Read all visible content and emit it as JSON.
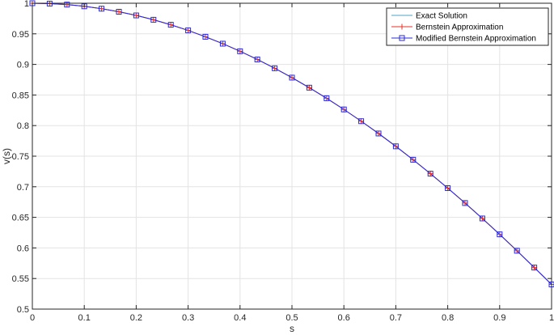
{
  "chart_data": {
    "type": "line",
    "xlabel": "s",
    "ylabel": "v(s)",
    "xlim": [
      0,
      1
    ],
    "ylim": [
      0.5,
      1
    ],
    "grid": true,
    "legend_position": "top-right",
    "x_ticks": [
      "0",
      "0.1",
      "0.2",
      "0.3",
      "0.4",
      "0.5",
      "0.6",
      "0.7",
      "0.8",
      "0.9",
      "1"
    ],
    "y_ticks": [
      "0.5",
      "0.55",
      "0.6",
      "0.65",
      "0.7",
      "0.75",
      "0.8",
      "0.85",
      "0.9",
      "0.95",
      "1"
    ],
    "x": [
      0,
      0.0333,
      0.0667,
      0.1,
      0.1333,
      0.1667,
      0.2,
      0.2333,
      0.2667,
      0.3,
      0.3333,
      0.3667,
      0.4,
      0.4333,
      0.4667,
      0.5,
      0.5333,
      0.5667,
      0.6,
      0.6333,
      0.6667,
      0.7,
      0.7333,
      0.7667,
      0.8,
      0.8333,
      0.8667,
      0.9,
      0.9333,
      0.9667,
      1
    ],
    "series": [
      {
        "name": "Exact Solution",
        "color": "#4da6c8",
        "marker": "none",
        "values": [
          1.0,
          0.9994,
          0.9978,
          0.995,
          0.9911,
          0.9861,
          0.9801,
          0.973,
          0.9648,
          0.9556,
          0.9452,
          0.9339,
          0.9215,
          0.9081,
          0.8937,
          0.8784,
          0.862,
          0.8447,
          0.8264,
          0.8072,
          0.7871,
          0.7661,
          0.7442,
          0.7214,
          0.6978,
          0.6734,
          0.6482,
          0.6222,
          0.5954,
          0.5679,
          0.5403
        ]
      },
      {
        "name": "Bernstein Approximation",
        "color": "#e8312a",
        "marker": "plus",
        "values": [
          1.0,
          0.9994,
          0.9978,
          0.995,
          0.9911,
          0.9861,
          0.9801,
          0.973,
          0.9648,
          0.9556,
          0.9452,
          0.9339,
          0.9215,
          0.9081,
          0.8937,
          0.8784,
          0.862,
          0.8447,
          0.8264,
          0.8072,
          0.7871,
          0.7661,
          0.7442,
          0.7214,
          0.6978,
          0.6734,
          0.6482,
          0.6222,
          0.5954,
          0.5679,
          0.5403
        ]
      },
      {
        "name": "Modified Bernstein Approximation",
        "color": "#2b2bd9",
        "marker": "square",
        "values": [
          1.0,
          0.9994,
          0.9978,
          0.995,
          0.9911,
          0.9861,
          0.9801,
          0.973,
          0.9648,
          0.9556,
          0.9452,
          0.9339,
          0.9215,
          0.9081,
          0.8937,
          0.8784,
          0.862,
          0.8447,
          0.8264,
          0.8072,
          0.7871,
          0.7661,
          0.7442,
          0.7214,
          0.6978,
          0.6734,
          0.6482,
          0.6222,
          0.5954,
          0.5679,
          0.5403
        ]
      }
    ]
  }
}
